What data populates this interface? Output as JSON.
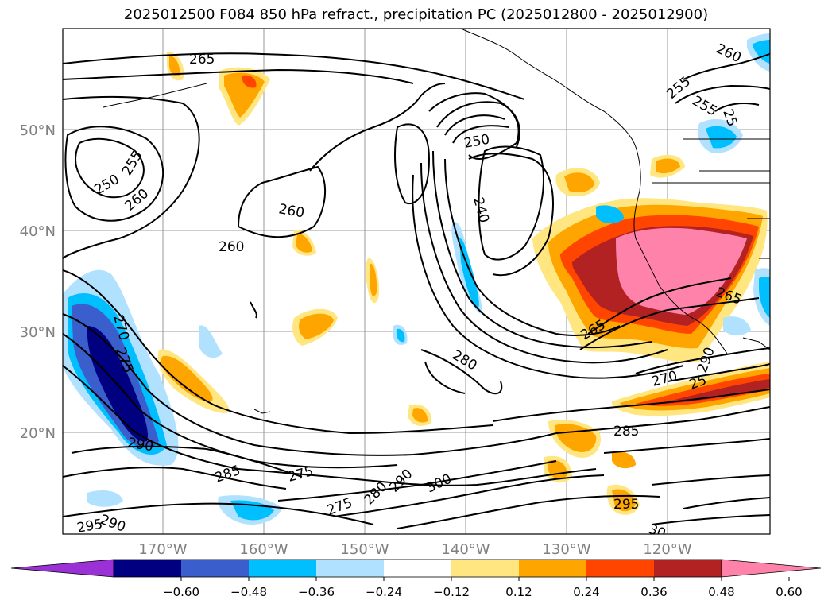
{
  "title": "2025012500 F084 850 hPa refract., precipitation PC (2025012800 - 2025012900)",
  "map": {
    "lat_labels": [
      {
        "lat": 50,
        "text": "50°N"
      },
      {
        "lat": 40,
        "text": "40°N"
      },
      {
        "lat": 30,
        "text": "30°N"
      },
      {
        "lat": 20,
        "text": "20°N"
      }
    ],
    "lon_labels": [
      {
        "lon": -170,
        "text": "170°W"
      },
      {
        "lon": -160,
        "text": "160°W"
      },
      {
        "lon": -150,
        "text": "150°W"
      },
      {
        "lon": -140,
        "text": "140°W"
      },
      {
        "lon": -130,
        "text": "130°W"
      },
      {
        "lon": -120,
        "text": "120°W"
      }
    ],
    "contour_labels": [
      "265",
      "250",
      "255",
      "260",
      "260",
      "260",
      "250",
      "240",
      "255",
      "255",
      "25",
      "260",
      "265",
      "270",
      "275",
      "280",
      "265",
      "270",
      "25",
      "285",
      "290",
      "285",
      "275",
      "275",
      "280",
      "290",
      "300",
      "295",
      "295",
      "290",
      "30",
      "290"
    ]
  },
  "colorbar": {
    "ticks": [
      "−0.60",
      "−0.48",
      "−0.36",
      "−0.24",
      "−0.12",
      "0.12",
      "0.24",
      "0.36",
      "0.48",
      "0.60"
    ],
    "colors": [
      "#9b30d6",
      "#000080",
      "#3a5fcd",
      "#00bfff",
      "#b0e2ff",
      "#ffffff",
      "#ffe680",
      "#ffa500",
      "#ff4500",
      "#b22222",
      "#ff82ab"
    ]
  }
}
